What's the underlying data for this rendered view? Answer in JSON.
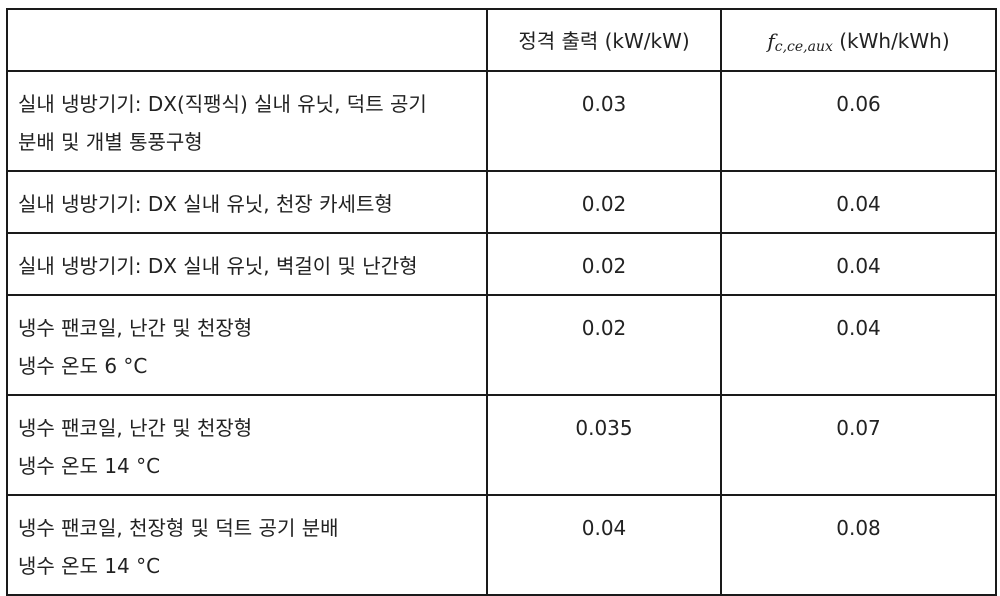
{
  "table": {
    "headers": {
      "col1": "",
      "col2": "정격 출력 (kW/kW)",
      "col3_symbol": "f",
      "col3_subscript": "c,ce,aux",
      "col3_unit": "(kWh/kWh)"
    },
    "rows": [
      {
        "label_line1": "실내 냉방기기: DX(직팽식) 실내 유닛, 덕트 공기",
        "label_line2": "분배 및 개별 통풍구형",
        "rated_output": "0.03",
        "f_aux": "0.06"
      },
      {
        "label_line1": "실내 냉방기기: DX 실내 유닛, 천장 카세트형",
        "label_line2": "",
        "rated_output": "0.02",
        "f_aux": "0.04"
      },
      {
        "label_line1": "실내 냉방기기: DX 실내 유닛, 벽걸이 및 난간형",
        "label_line2": "",
        "rated_output": "0.02",
        "f_aux": "0.04"
      },
      {
        "label_line1": "냉수 팬코일, 난간 및 천장형",
        "label_line2": "냉수 온도 6 °C",
        "rated_output": "0.02",
        "f_aux": "0.04"
      },
      {
        "label_line1": "냉수 팬코일, 난간 및 천장형",
        "label_line2": "냉수 온도 14 °C",
        "rated_output": "0.035",
        "f_aux": "0.07"
      },
      {
        "label_line1": "냉수 팬코일, 천장형 및 덕트 공기 분배",
        "label_line2": "냉수 온도 14 °C",
        "rated_output": "0.04",
        "f_aux": "0.08"
      }
    ]
  }
}
